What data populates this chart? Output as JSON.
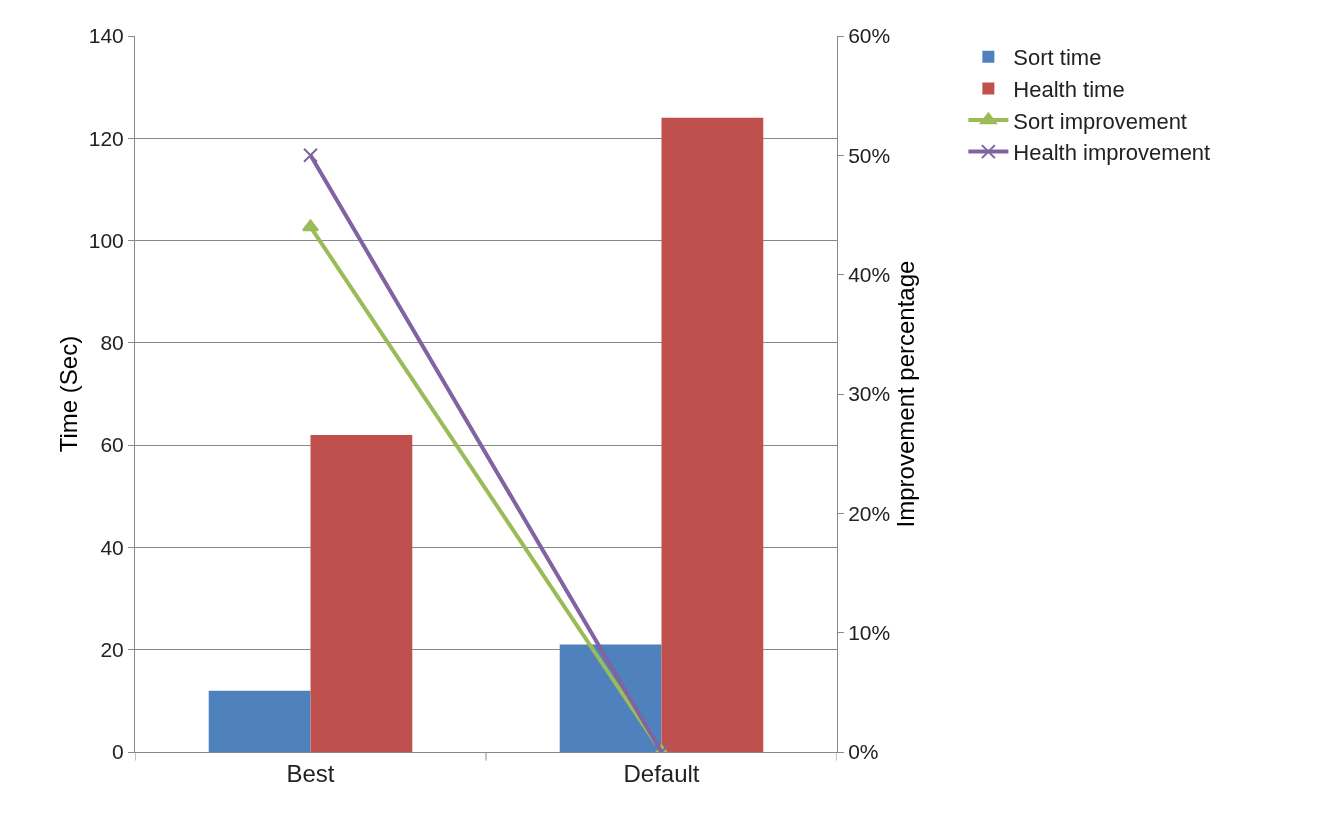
{
  "chart_data": {
    "type": "bar",
    "categories": [
      "Best",
      "Default"
    ],
    "ylabel": "Time (Sec)",
    "y2label": "Improvement percentage",
    "ylim": [
      0,
      140
    ],
    "yticks": [
      0,
      20,
      40,
      60,
      80,
      100,
      120,
      140
    ],
    "y2lim": [
      0,
      60
    ],
    "y2ticks": [
      {
        "value": 0,
        "label": "0%"
      },
      {
        "value": 10,
        "label": "10%"
      },
      {
        "value": 20,
        "label": "20%"
      },
      {
        "value": 30,
        "label": "30%"
      },
      {
        "value": 40,
        "label": "40%"
      },
      {
        "value": 50,
        "label": "50%"
      },
      {
        "value": 60,
        "label": "60%"
      }
    ],
    "grid": "y",
    "legend": "right",
    "series": [
      {
        "name": "Sort time",
        "color": "#4f81bd",
        "values": [
          12,
          21
        ]
      },
      {
        "name": "Health time",
        "color": "#c0504d",
        "values": [
          62,
          124
        ]
      },
      {
        "name": "Sort improvement",
        "type": "line",
        "axis": "y2",
        "marker": "triangle",
        "color": "#9bbb59",
        "values": [
          44,
          0
        ]
      },
      {
        "name": "Health improvement",
        "type": "line",
        "axis": "y2",
        "marker": "cross",
        "color": "#8064a2",
        "values": [
          50,
          0
        ]
      }
    ]
  }
}
